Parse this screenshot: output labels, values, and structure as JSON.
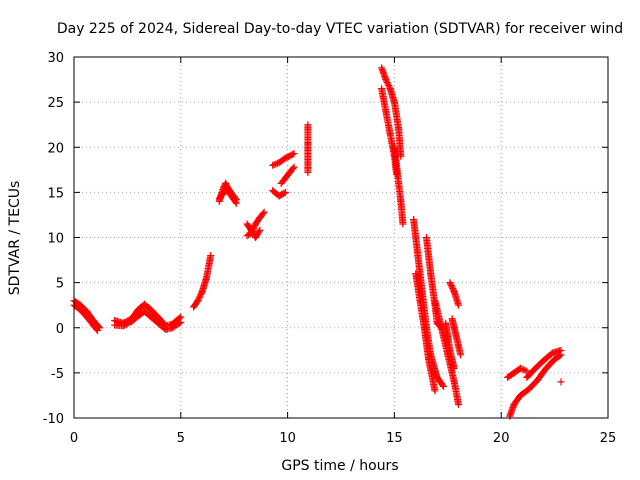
{
  "chart_data": {
    "type": "scatter",
    "title": "Day 225 of 2024, Sidereal Day-to-day VTEC variation (SDTVAR) for receiver wind",
    "xlabel": "GPS time / hours",
    "ylabel": "SDTVAR / TECUs",
    "xlim": [
      0,
      25
    ],
    "ylim": [
      -10,
      30
    ],
    "xticks": [
      0,
      5,
      10,
      15,
      20,
      25
    ],
    "yticks": [
      -10,
      -5,
      0,
      5,
      10,
      15,
      20,
      25,
      30
    ],
    "grid": true,
    "marker": "+",
    "color": "#ff0000",
    "segments": [
      {
        "x": [
          0.0,
          0.3,
          0.6,
          0.9,
          1.2
        ],
        "y": [
          3.0,
          2.5,
          1.8,
          0.8,
          0.0
        ]
      },
      {
        "x": [
          0.0,
          0.3,
          0.6,
          0.9,
          1.1
        ],
        "y": [
          2.5,
          2.0,
          1.2,
          0.3,
          -0.3
        ]
      },
      {
        "x": [
          1.9,
          2.3,
          2.7,
          3.0,
          3.3,
          3.6,
          4.0,
          4.3,
          4.6,
          5.0
        ],
        "y": [
          0.8,
          0.5,
          1.0,
          2.0,
          2.6,
          2.0,
          1.0,
          0.2,
          0.4,
          1.2
        ]
      },
      {
        "x": [
          1.9,
          2.3,
          2.7,
          3.0,
          3.3,
          3.6,
          4.0,
          4.3,
          4.6,
          5.0
        ],
        "y": [
          0.3,
          0.2,
          0.7,
          1.3,
          1.8,
          1.2,
          0.4,
          -0.2,
          0.0,
          0.6
        ]
      },
      {
        "x": [
          5.6,
          5.8,
          6.0,
          6.2,
          6.4
        ],
        "y": [
          2.3,
          3.0,
          4.0,
          5.5,
          8.0
        ]
      },
      {
        "x": [
          6.8,
          6.9,
          7.0,
          7.1,
          7.2,
          7.4,
          7.6
        ],
        "y": [
          14.0,
          14.8,
          15.5,
          16.0,
          15.5,
          14.8,
          14.2
        ]
      },
      {
        "x": [
          6.8,
          7.0,
          7.2,
          7.4,
          7.6
        ],
        "y": [
          14.3,
          15.0,
          15.2,
          14.5,
          13.8
        ]
      },
      {
        "x": [
          8.1,
          8.3,
          8.5,
          8.7,
          8.9
        ],
        "y": [
          10.2,
          10.5,
          11.5,
          12.2,
          12.8
        ]
      },
      {
        "x": [
          8.1,
          8.3,
          8.5,
          8.7
        ],
        "y": [
          11.5,
          10.8,
          10.0,
          10.8
        ]
      },
      {
        "x": [
          9.3,
          9.6,
          9.9,
          10.3
        ],
        "y": [
          18.0,
          18.3,
          18.8,
          19.3
        ]
      },
      {
        "x": [
          9.3,
          9.6,
          9.9
        ],
        "y": [
          15.2,
          14.6,
          15.0
        ]
      },
      {
        "x": [
          9.7,
          9.9,
          10.1,
          10.3
        ],
        "y": [
          16.0,
          16.6,
          17.2,
          17.8
        ]
      },
      {
        "x": [
          10.95,
          10.95,
          10.95,
          10.95,
          10.95,
          10.95
        ],
        "y": [
          22.5,
          22.0,
          20.5,
          18.8,
          17.6,
          17.2
        ]
      },
      {
        "x": [
          14.4,
          14.6,
          14.8,
          15.0,
          15.2,
          15.3
        ],
        "y": [
          28.8,
          27.5,
          26.5,
          25.0,
          22.0,
          19.0
        ]
      },
      {
        "x": [
          14.4,
          14.6,
          14.8,
          15.0,
          15.1
        ],
        "y": [
          26.5,
          24.0,
          21.5,
          19.0,
          17.0
        ]
      },
      {
        "x": [
          15.0,
          15.1,
          15.2,
          15.3,
          15.4
        ],
        "y": [
          20.0,
          18.0,
          16.0,
          14.0,
          11.5
        ]
      },
      {
        "x": [
          15.9,
          16.1,
          16.3,
          16.5,
          16.7,
          17.0,
          17.3
        ],
        "y": [
          12.0,
          8.0,
          4.0,
          0.0,
          -3.0,
          -5.5,
          -6.5
        ]
      },
      {
        "x": [
          16.0,
          16.2,
          16.4,
          16.6,
          16.9
        ],
        "y": [
          6.0,
          3.0,
          0.0,
          -3.5,
          -7.0
        ]
      },
      {
        "x": [
          16.5,
          16.7,
          16.9,
          17.0,
          17.2
        ],
        "y": [
          10.0,
          6.0,
          2.5,
          0.5,
          0.0
        ]
      },
      {
        "x": [
          16.9,
          17.2,
          17.5,
          17.8,
          18.0
        ],
        "y": [
          3.0,
          0.0,
          -3.0,
          -6.0,
          -8.5
        ]
      },
      {
        "x": [
          17.4,
          17.5,
          17.6,
          17.7,
          17.8
        ],
        "y": [
          0.5,
          -1.0,
          -2.5,
          -3.5,
          -4.5
        ]
      },
      {
        "x": [
          17.6,
          17.8,
          18.0
        ],
        "y": [
          5.0,
          4.0,
          2.5
        ]
      },
      {
        "x": [
          17.7,
          17.8,
          18.0,
          18.1
        ],
        "y": [
          1.0,
          0.0,
          -2.0,
          -3.0
        ]
      },
      {
        "x": [
          20.3,
          20.6,
          20.9,
          21.2
        ],
        "y": [
          -5.5,
          -5.0,
          -4.5,
          -4.8
        ]
      },
      {
        "x": [
          20.4,
          20.6,
          20.9,
          21.3,
          21.7,
          22.1,
          22.5,
          22.8
        ],
        "y": [
          -9.8,
          -8.5,
          -7.5,
          -6.8,
          -5.8,
          -4.5,
          -3.5,
          -3.0
        ]
      },
      {
        "x": [
          21.2,
          21.6,
          22.0,
          22.4,
          22.8
        ],
        "y": [
          -5.5,
          -4.5,
          -3.6,
          -2.8,
          -2.5
        ]
      },
      {
        "x": [
          22.8
        ],
        "y": [
          -6.0
        ]
      }
    ]
  }
}
